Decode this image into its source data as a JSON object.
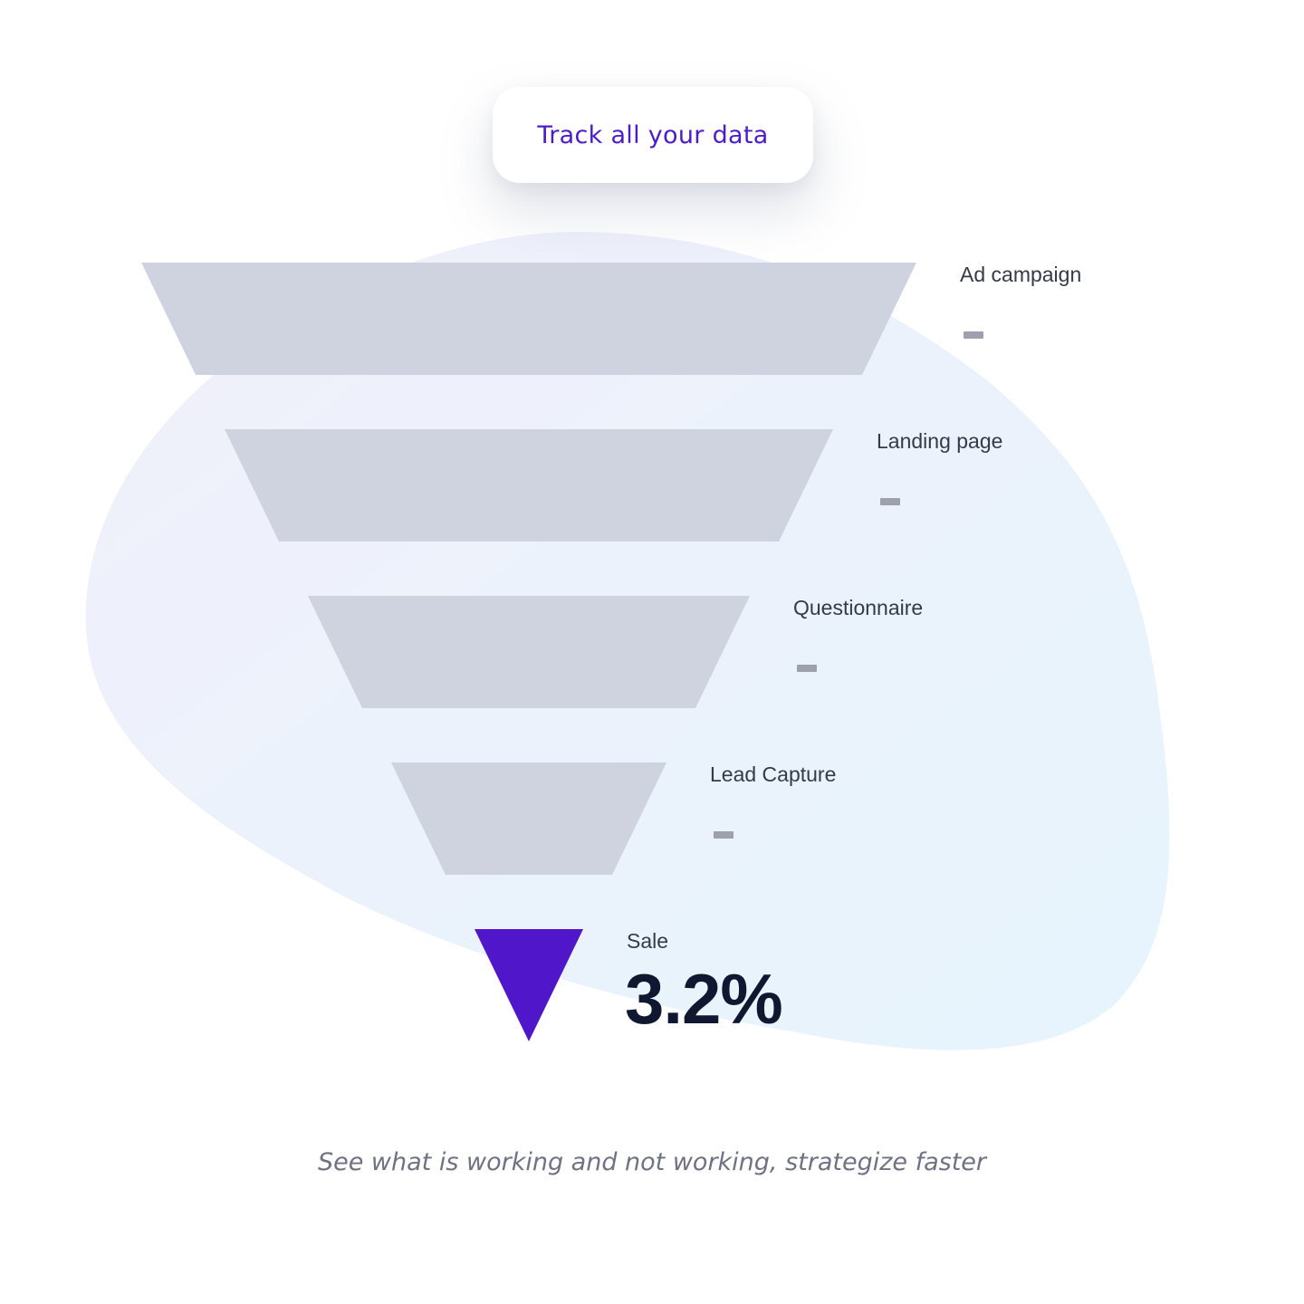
{
  "header": {
    "pill_label": "Track all your data"
  },
  "funnel": {
    "stages": [
      {
        "label": "Ad campaign",
        "value": ""
      },
      {
        "label": "Landing page",
        "value": ""
      },
      {
        "label": "Questionnaire",
        "value": ""
      },
      {
        "label": "Lead Capture",
        "value": ""
      },
      {
        "label": "Sale",
        "value": "3.2%"
      }
    ]
  },
  "footer": {
    "tagline": "See what is working and not working, strategize faster"
  },
  "colors": {
    "stage_fill": "#cfd3e0",
    "accent": "#4f17c9",
    "pill_text": "#4b1cc9",
    "value_text": "#0f1830"
  }
}
